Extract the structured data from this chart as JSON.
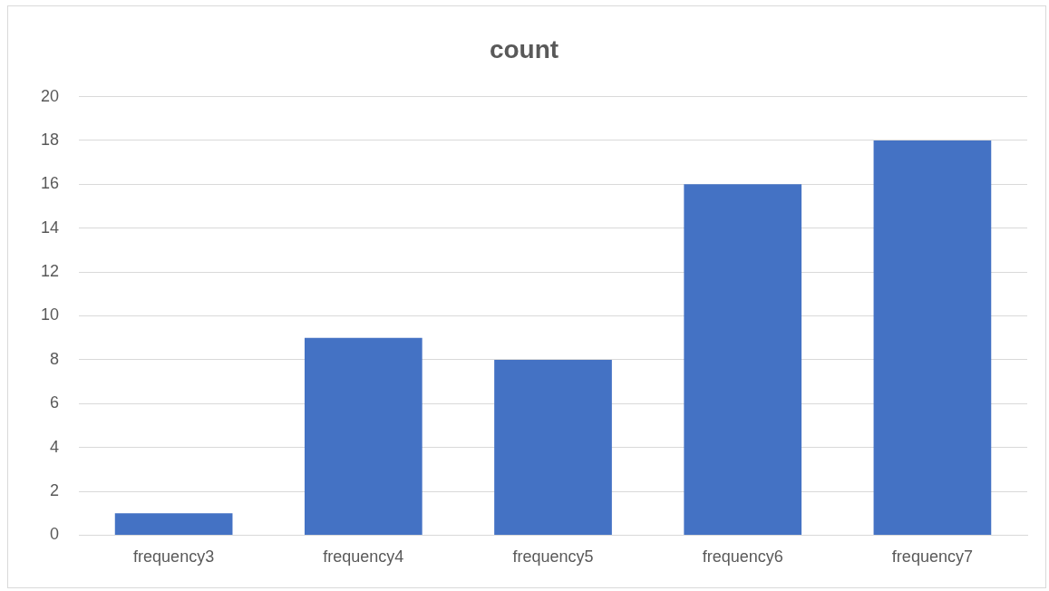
{
  "chart_data": {
    "type": "bar",
    "title": "count",
    "categories": [
      "frequency3",
      "frequency4",
      "frequency5",
      "frequency6",
      "frequency7"
    ],
    "values": [
      1,
      9,
      8,
      16,
      18
    ],
    "color": "#4472c4",
    "ylim": [
      0,
      20
    ],
    "yticks": [
      0,
      2,
      4,
      6,
      8,
      10,
      12,
      14,
      16,
      18,
      20
    ],
    "grid": "y",
    "legend": false
  }
}
